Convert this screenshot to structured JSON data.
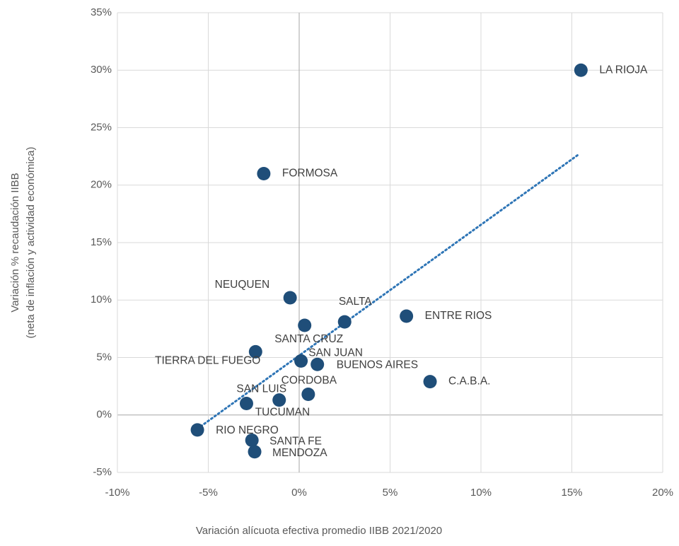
{
  "chart_data": {
    "type": "scatter",
    "x_label": "Variación alícuota efectiva promedio IIBB 2021/2020",
    "y_label": [
      "Variación % recaudación IIBB",
      "(neta de inflación y actividad económica)"
    ],
    "xlim": [
      -10,
      20
    ],
    "ylim": [
      -5,
      35
    ],
    "xticks": [
      {
        "value": -10,
        "label": "-10%"
      },
      {
        "value": -5,
        "label": "-5%"
      },
      {
        "value": 0,
        "label": "0%"
      },
      {
        "value": 5,
        "label": "5%"
      },
      {
        "value": 10,
        "label": "10%"
      },
      {
        "value": 15,
        "label": "15%"
      },
      {
        "value": 20,
        "label": "20%"
      }
    ],
    "yticks": [
      {
        "value": -5,
        "label": "-5%"
      },
      {
        "value": 0,
        "label": "0%"
      },
      {
        "value": 5,
        "label": "5%"
      },
      {
        "value": 10,
        "label": "10%"
      },
      {
        "value": 15,
        "label": "15%"
      },
      {
        "value": 20,
        "label": "20%"
      },
      {
        "value": 25,
        "label": "25%"
      },
      {
        "value": 30,
        "label": "30%"
      },
      {
        "value": 35,
        "label": "35%"
      }
    ],
    "grid": true,
    "series": [
      {
        "color": "#1f4e79",
        "labels": [
          "LA RIOJA",
          "FORMOSA",
          "NEUQUEN",
          "SALTA",
          "ENTRE RIOS",
          "SANTA CRUZ",
          "TIERRA DEL FUEGO",
          "SAN JUAN",
          "BUENOS AIRES",
          "C.A.B.A.",
          "CORDOBA",
          "SAN LUIS",
          "TUCUMAN",
          "RIO NEGRO",
          "SANTA FE",
          "MENDOZA"
        ],
        "x": [
          15.5,
          -1.95,
          -0.5,
          2.5,
          5.9,
          0.3,
          -2.4,
          0.1,
          1.0,
          7.2,
          0.5,
          -1.1,
          -2.9,
          -5.6,
          -2.6,
          -2.45
        ],
        "values": [
          30.0,
          21.0,
          10.2,
          8.1,
          8.6,
          7.8,
          5.5,
          4.7,
          4.4,
          2.9,
          1.8,
          1.3,
          1.0,
          -1.3,
          -2.2,
          -3.2
        ]
      }
    ],
    "trendline": {
      "color": "#2e75b6",
      "x": [
        -5.6,
        15.4
      ],
      "values": [
        -1.2,
        22.7
      ]
    }
  }
}
